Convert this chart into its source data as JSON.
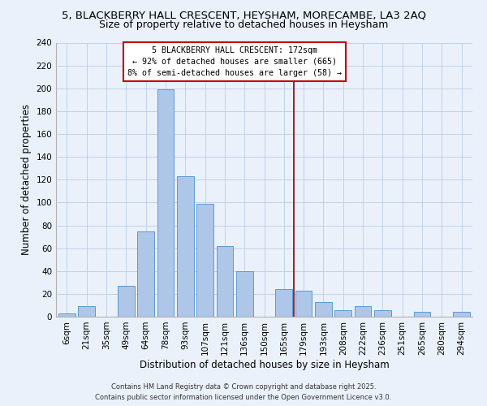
{
  "title": "5, BLACKBERRY HALL CRESCENT, HEYSHAM, MORECAMBE, LA3 2AQ",
  "subtitle": "Size of property relative to detached houses in Heysham",
  "xlabel": "Distribution of detached houses by size in Heysham",
  "ylabel": "Number of detached properties",
  "bin_labels": [
    "6sqm",
    "21sqm",
    "35sqm",
    "49sqm",
    "64sqm",
    "78sqm",
    "93sqm",
    "107sqm",
    "121sqm",
    "136sqm",
    "150sqm",
    "165sqm",
    "179sqm",
    "193sqm",
    "208sqm",
    "222sqm",
    "236sqm",
    "251sqm",
    "265sqm",
    "280sqm",
    "294sqm"
  ],
  "bin_values": [
    3,
    9,
    0,
    27,
    75,
    199,
    123,
    99,
    62,
    40,
    0,
    24,
    23,
    13,
    6,
    9,
    6,
    0,
    4,
    0,
    4
  ],
  "bar_color": "#aec6e8",
  "bar_edge_color": "#5b9bd5",
  "vline_color": "#8b0000",
  "vline_index": 11.5,
  "annotation_title": "5 BLACKBERRY HALL CRESCENT: 172sqm",
  "annotation_line1": "← 92% of detached houses are smaller (665)",
  "annotation_line2": "8% of semi-detached houses are larger (58) →",
  "annotation_box_facecolor": "#ffffff",
  "annotation_box_edgecolor": "#c00000",
  "ylim": [
    0,
    240
  ],
  "yticks": [
    0,
    20,
    40,
    60,
    80,
    100,
    120,
    140,
    160,
    180,
    200,
    220,
    240
  ],
  "background_color": "#eaf1fb",
  "grid_color": "#b0c4de",
  "footer1": "Contains HM Land Registry data © Crown copyright and database right 2025.",
  "footer2": "Contains public sector information licensed under the Open Government Licence v3.0.",
  "title_fontsize": 9.5,
  "subtitle_fontsize": 9,
  "xlabel_fontsize": 8.5,
  "ylabel_fontsize": 8.5,
  "tick_fontsize": 7.5,
  "footer_fontsize": 6
}
